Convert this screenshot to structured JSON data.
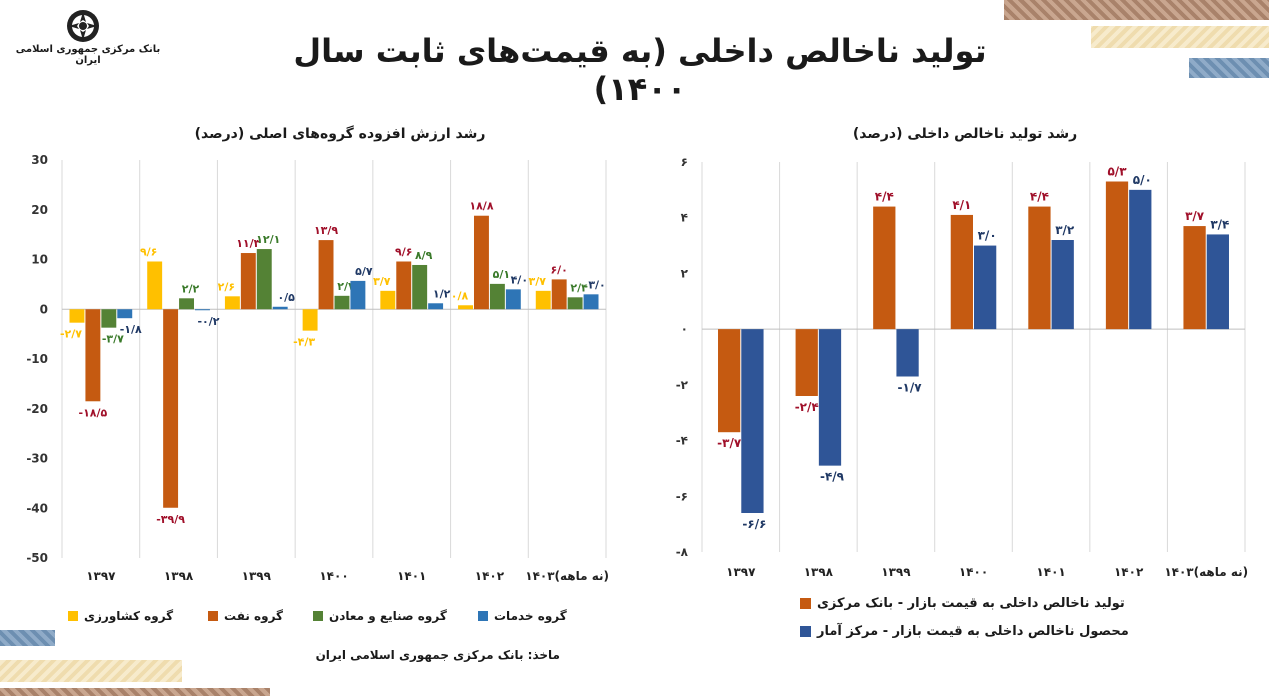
{
  "header": {
    "title": "تولید ناخالص داخلی (به قیمت‌های ثابت سال ۱۴۰۰)",
    "bank_name": "بانک مرکزی جمهوری اسلامی ایران"
  },
  "source_note": "ماخذ: بانک مرکزی جمهوری اسلامی ایران",
  "colors": {
    "agriculture": "#ffc000",
    "oil": "#c55a11",
    "industry": "#548235",
    "services": "#2e75b6",
    "cbi": "#c55a11",
    "sci": "#2f5597",
    "label_red": "#a0102a",
    "label_green": "#3a7a2a",
    "label_blue": "#1f3864"
  },
  "chart_data": [
    {
      "type": "bar",
      "title": "رشد ارزش افزوده گروه‌های اصلی (درصد)",
      "categories": [
        "۱۳۹۷",
        "۱۳۹۸",
        "۱۳۹۹",
        "۱۴۰۰",
        "۱۴۰۱",
        "۱۴۰۲",
        "۱۴۰۳(نه ماهه)"
      ],
      "ylim": [
        -50,
        30
      ],
      "yticks": [
        30,
        20,
        10,
        0,
        -10,
        -20,
        -30,
        -40,
        -50
      ],
      "ytick_labels": [
        "30",
        "20",
        "10",
        "0",
        "-10",
        "-20",
        "-30",
        "-40",
        "-50"
      ],
      "legend_position": "bottom",
      "series": [
        {
          "name": "گروه کشاورزی",
          "values": [
            -2.7,
            9.6,
            2.6,
            -4.3,
            3.7,
            0.8,
            3.7
          ],
          "labels": [
            "-۲/۷",
            "۹/۶",
            "۲/۶",
            "-۴/۳",
            "۳/۷",
            "۰/۸",
            "۳/۷"
          ]
        },
        {
          "name": "گروه نفت",
          "values": [
            -18.5,
            -39.9,
            11.3,
            13.9,
            9.6,
            18.8,
            6.0
          ],
          "labels": [
            "-۱۸/۵",
            "-۳۹/۹",
            "۱۱/۳",
            "۱۳/۹",
            "۹/۶",
            "۱۸/۸",
            "۶/۰"
          ]
        },
        {
          "name": "گروه صنایع و معادن",
          "values": [
            -3.7,
            2.2,
            12.1,
            2.7,
            8.9,
            5.1,
            2.4
          ],
          "labels": [
            "-۳/۷",
            "۲/۲",
            "۱۲/۱",
            "۲/۷",
            "۸/۹",
            "۵/۱",
            "۲/۴"
          ]
        },
        {
          "name": "گروه خدمات",
          "values": [
            -1.8,
            -0.2,
            0.5,
            5.7,
            1.2,
            4.0,
            3.0
          ],
          "labels": [
            "-۱/۸",
            "-۰/۲",
            "۰/۵",
            "۵/۷",
            "۱/۲",
            "۴/۰",
            "۳/۰"
          ]
        }
      ]
    },
    {
      "type": "bar",
      "title": "رشد تولید ناخالص داخلی (درصد)",
      "categories": [
        "۱۳۹۷",
        "۱۳۹۸",
        "۱۳۹۹",
        "۱۴۰۰",
        "۱۴۰۱",
        "۱۴۰۲",
        "۱۴۰۳(نه ماهه)"
      ],
      "ylim": [
        -8,
        6
      ],
      "yticks": [
        6,
        4,
        2,
        0,
        -2,
        -4,
        -6,
        -8
      ],
      "ytick_labels": [
        "۶",
        "۴",
        "۲",
        "۰",
        "-۲",
        "-۴",
        "-۶",
        "-۸"
      ],
      "legend_position": "bottom",
      "series": [
        {
          "name": "تولید ناخالص داخلی به قیمت بازار - بانک مرکزی",
          "values": [
            -3.7,
            -2.4,
            4.4,
            4.1,
            4.4,
            5.3,
            3.7
          ],
          "labels": [
            "-۳/۷",
            "-۲/۴",
            "۴/۴",
            "۴/۱",
            "۴/۴",
            "۵/۳",
            "۳/۷"
          ]
        },
        {
          "name": "محصول ناخالص داخلی به قیمت بازار - مرکز آمار",
          "values": [
            -6.6,
            -4.9,
            -1.7,
            3.0,
            3.2,
            5.0,
            3.4
          ],
          "labels": [
            "-۶/۶",
            "-۴/۹",
            "-۱/۷",
            "۳/۰",
            "۳/۲",
            "۵/۰",
            "۳/۴"
          ]
        }
      ]
    }
  ]
}
